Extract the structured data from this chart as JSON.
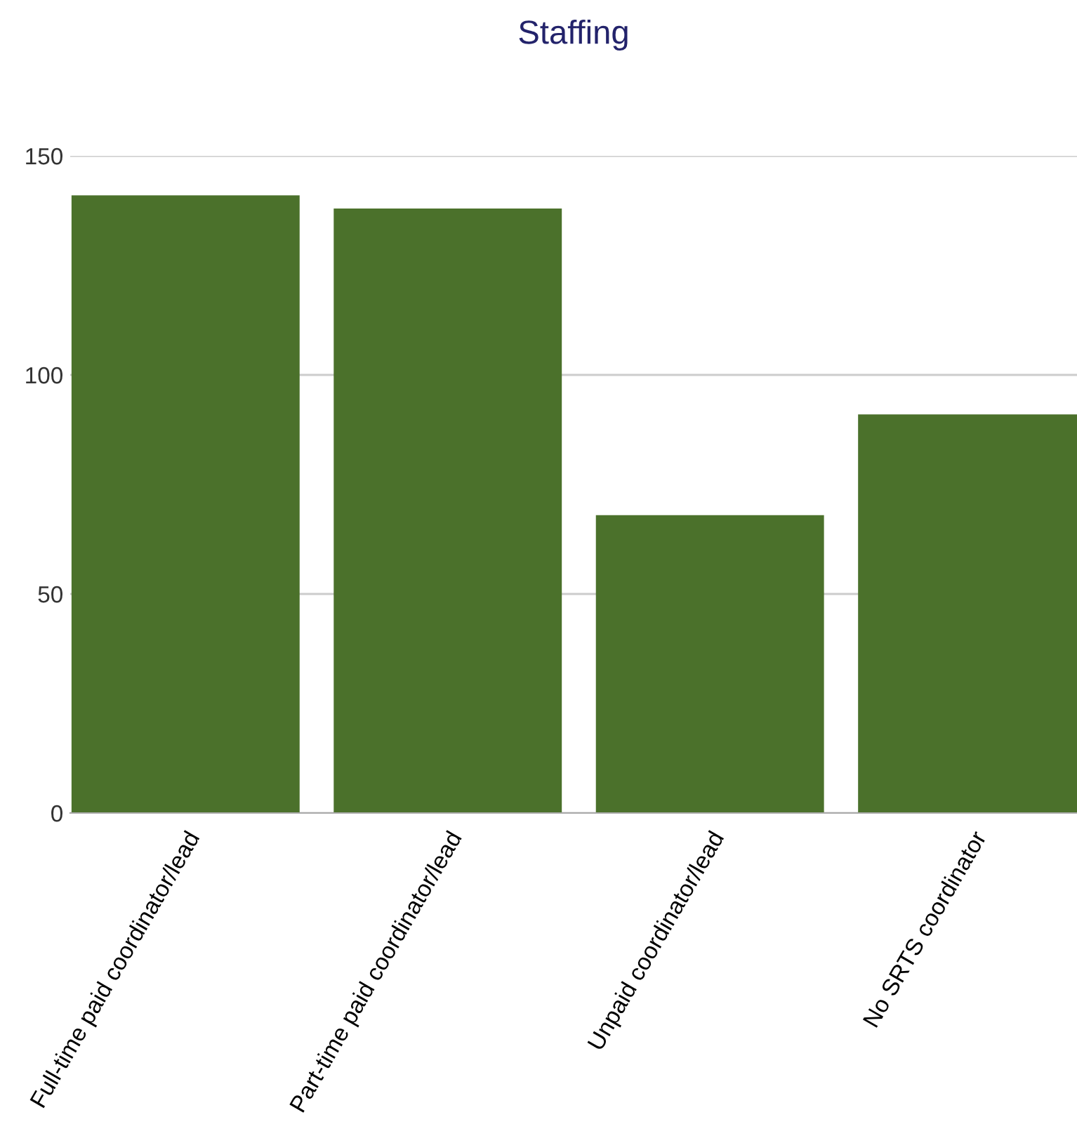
{
  "chart_data": {
    "type": "bar",
    "title": "Staffing",
    "categories": [
      "Full-time paid coordinator/lead",
      "Part-time paid coordinator/lead",
      "Unpaid coordinator/lead",
      "No SRTS coordinator"
    ],
    "values": [
      141,
      138,
      68,
      91
    ],
    "color": "#4b712b",
    "ylim": [
      0,
      150
    ],
    "yticks": [
      0,
      50,
      100,
      150
    ],
    "grid": "y"
  }
}
